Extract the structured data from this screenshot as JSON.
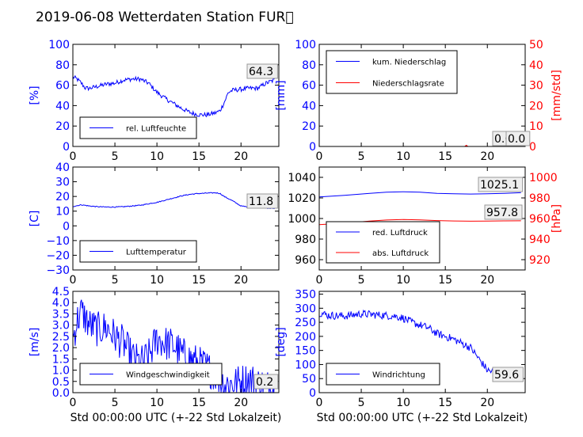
{
  "figure": {
    "title": "2019-06-08 Wetterdaten Station FUR\u0000"
  },
  "colors": {
    "primary": "#0000ff",
    "secondary": "#ff0000",
    "frame": "#000000",
    "annot_bg": "#eeeeee"
  },
  "chart_data": [
    {
      "type": "line",
      "xlim": [
        0,
        24.5
      ],
      "xticks": [
        "0",
        "5",
        "10",
        "15",
        "20"
      ],
      "ylim": [
        0,
        100
      ],
      "yticks": [
        "0",
        "20",
        "40",
        "60",
        "80",
        "100"
      ],
      "ylabel": "[%]",
      "grid": false,
      "legend": "lower-left",
      "annotations": [
        {
          "text": "64.3"
        }
      ],
      "series": [
        {
          "name": "rel. Luftfeuchte",
          "color": "#0000ff",
          "noise": 2.2,
          "x": [
            0,
            0.5,
            1,
            1.5,
            2,
            3,
            4,
            5,
            6,
            7,
            8,
            9,
            10,
            11,
            12,
            13,
            14,
            15,
            16,
            17,
            17.5,
            18,
            18.5,
            19,
            20,
            21,
            22,
            23,
            24
          ],
          "y": [
            68,
            66,
            62,
            57,
            57,
            59,
            61,
            62,
            65,
            66,
            66,
            62,
            53,
            47,
            42,
            37,
            33,
            31,
            31,
            33,
            35,
            43,
            53,
            55,
            56,
            57,
            57,
            62,
            65
          ]
        }
      ]
    },
    {
      "type": "line",
      "xlim": [
        0,
        24.5
      ],
      "xticks": [
        "0",
        "5",
        "10",
        "15",
        "20"
      ],
      "ylim": [
        0,
        100
      ],
      "yticks": [
        "0",
        "20",
        "40",
        "60",
        "80",
        "100"
      ],
      "ylabel": "[mm]",
      "y2lim": [
        0,
        50
      ],
      "y2ticks": [
        "0",
        "10",
        "20",
        "30",
        "40",
        "50"
      ],
      "y2label": "[mm/std]",
      "grid": false,
      "legend": "upper-left",
      "annotations": [
        {
          "text": "0.0"
        },
        {
          "text": "0.0"
        }
      ],
      "series": [
        {
          "name": "kum. Niederschlag",
          "color": "#0000ff",
          "axis": "left",
          "noise": 0,
          "x": [
            0,
            24
          ],
          "y": [
            0,
            0
          ]
        },
        {
          "name": "Niederschlagsrate",
          "color": "#ff0000",
          "axis": "right",
          "noise": 0,
          "x": [
            0,
            17.3,
            17.5,
            17.7,
            24
          ],
          "y": [
            0,
            0,
            0.6,
            0,
            0
          ]
        }
      ]
    },
    {
      "type": "line",
      "xlim": [
        0,
        24.5
      ],
      "xticks": [
        "0",
        "5",
        "10",
        "15",
        "20"
      ],
      "ylim": [
        -30,
        40
      ],
      "yticks": [
        "−30",
        "−20",
        "−10",
        "0",
        "10",
        "20",
        "30",
        "40"
      ],
      "ylabel": "[C]",
      "grid": false,
      "legend": "lower-left",
      "annotations": [
        {
          "text": "11.8"
        }
      ],
      "series": [
        {
          "name": "Lufttemperatur",
          "color": "#0000ff",
          "noise": 0.3,
          "x": [
            0,
            1,
            2,
            3,
            4,
            5,
            6,
            7,
            8,
            9,
            10,
            11,
            12,
            13,
            14,
            15,
            16,
            17,
            17.5,
            18,
            19,
            20,
            21,
            22,
            23,
            24
          ],
          "y": [
            13.2,
            14.3,
            13.5,
            13,
            12.8,
            12.8,
            13,
            13.5,
            14,
            15,
            16,
            17.5,
            19,
            20.5,
            21.5,
            22,
            22.3,
            22.5,
            22,
            20,
            17,
            13.5,
            12.8,
            12.5,
            12,
            11.8
          ]
        }
      ]
    },
    {
      "type": "line",
      "xlim": [
        0,
        24.5
      ],
      "xticks": [
        "0",
        "5",
        "10",
        "15",
        "20"
      ],
      "ylim": [
        950,
        1050
      ],
      "yticks": [
        "960",
        "980",
        "1000",
        "1020",
        "1040"
      ],
      "ylabel": "",
      "y2lim": [
        910,
        1010
      ],
      "y2ticks": [
        "920",
        "940",
        "960",
        "980",
        "1000"
      ],
      "y2label": "[hPa]",
      "grid": false,
      "legend": "lower-left",
      "annotations": [
        {
          "text": "1025.1"
        },
        {
          "text": "957.8"
        }
      ],
      "series": [
        {
          "name": "red. Luftdruck",
          "color": "#0000ff",
          "axis": "left",
          "noise": 0,
          "x": [
            0,
            3,
            6,
            8,
            10,
            12,
            14,
            16,
            18,
            20,
            22,
            24
          ],
          "y": [
            1021,
            1022.5,
            1024.5,
            1025.5,
            1026,
            1025.5,
            1024.5,
            1024,
            1023.8,
            1024,
            1024.5,
            1025.1
          ]
        },
        {
          "name": "abs. Luftdruck",
          "color": "#ff0000",
          "axis": "right",
          "noise": 0,
          "x": [
            0,
            3,
            6,
            8,
            10,
            12,
            14,
            16,
            18,
            20,
            22,
            24
          ],
          "y": [
            954,
            955.5,
            957.5,
            958.5,
            959,
            958.6,
            958,
            957.6,
            957.4,
            957.5,
            957.7,
            957.8
          ]
        }
      ]
    },
    {
      "type": "line",
      "xlim": [
        0,
        24.5
      ],
      "xticks": [
        "0",
        "5",
        "10",
        "15",
        "20"
      ],
      "ylim": [
        0,
        4.5
      ],
      "yticks": [
        "0.0",
        "0.5",
        "1.0",
        "1.5",
        "2.0",
        "2.5",
        "3.0",
        "3.5",
        "4.0",
        "4.5"
      ],
      "ylabel": "[m/s]",
      "xlabel": "Std 00:00:00 UTC (+-22 Std Lokalzeit)",
      "grid": false,
      "legend": "lower-left",
      "annotations": [
        {
          "text": "0.2"
        }
      ],
      "series": [
        {
          "name": "Windgeschwindigkeit",
          "color": "#0000ff",
          "noise": 0.8,
          "x": [
            0,
            0.5,
            1,
            2,
            3,
            4,
            5,
            6,
            7,
            8,
            9,
            10,
            11,
            12,
            13,
            14,
            15,
            16,
            17,
            18,
            19,
            20,
            21,
            22,
            23,
            24
          ],
          "y": [
            2.4,
            3.2,
            3.6,
            3.0,
            2.8,
            2.9,
            2.5,
            2.2,
            1.6,
            1.3,
            1.6,
            2.4,
            2.2,
            2.1,
            1.7,
            1.5,
            1.3,
            1.1,
            0.8,
            0.4,
            0.4,
            0.5,
            0.6,
            0.4,
            0.3,
            0.2
          ]
        }
      ]
    },
    {
      "type": "line",
      "xlim": [
        0,
        24.5
      ],
      "xticks": [
        "0",
        "5",
        "10",
        "15",
        "20"
      ],
      "ylim": [
        0,
        360
      ],
      "yticks": [
        "0",
        "50",
        "100",
        "150",
        "200",
        "250",
        "300",
        "350"
      ],
      "ylabel": "[deg]",
      "xlabel": "Std 00:00:00 UTC (+-22 Std Lokalzeit)",
      "grid": false,
      "legend": "lower-left",
      "annotations": [
        {
          "text": "59.6"
        }
      ],
      "series": [
        {
          "name": "Windrichtung",
          "color": "#0000ff",
          "noise": 14,
          "x": [
            0,
            1,
            3,
            5,
            7,
            9,
            10,
            11,
            12,
            13,
            14,
            15,
            16,
            17,
            18,
            19,
            20,
            21,
            22,
            23,
            24
          ],
          "y": [
            285,
            275,
            272,
            280,
            276,
            272,
            265,
            250,
            240,
            230,
            210,
            200,
            190,
            175,
            160,
            120,
            80,
            70,
            65,
            62,
            59.6
          ]
        }
      ]
    }
  ]
}
